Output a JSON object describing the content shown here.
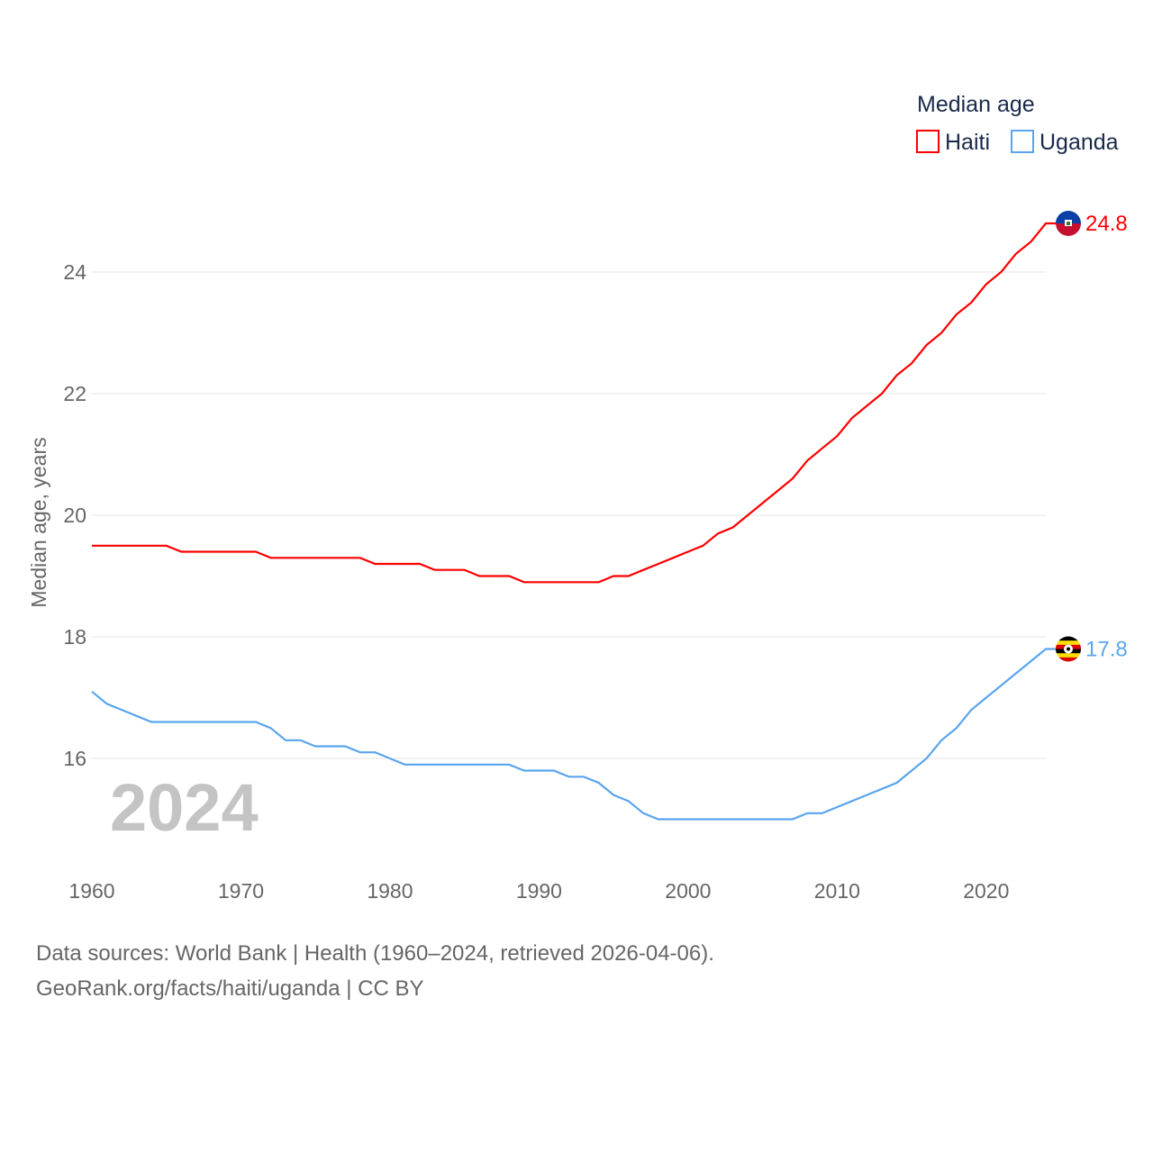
{
  "chart_data": {
    "type": "line",
    "title": "Median age",
    "ylabel": "Median age, years",
    "xlabel": "",
    "ylim": [
      15,
      24.8
    ],
    "xlim": [
      1960,
      2024
    ],
    "yticks": [
      16,
      18,
      20,
      22,
      24
    ],
    "xticks": [
      1960,
      1970,
      1980,
      1990,
      2000,
      2010,
      2020
    ],
    "grid": true,
    "legend_position": "top-right",
    "year_label": "2024",
    "x": [
      1960,
      1961,
      1962,
      1963,
      1964,
      1965,
      1966,
      1967,
      1968,
      1969,
      1970,
      1971,
      1972,
      1973,
      1974,
      1975,
      1976,
      1977,
      1978,
      1979,
      1980,
      1981,
      1982,
      1983,
      1984,
      1985,
      1986,
      1987,
      1988,
      1989,
      1990,
      1991,
      1992,
      1993,
      1994,
      1995,
      1996,
      1997,
      1998,
      1999,
      2000,
      2001,
      2002,
      2003,
      2004,
      2005,
      2006,
      2007,
      2008,
      2009,
      2010,
      2011,
      2012,
      2013,
      2014,
      2015,
      2016,
      2017,
      2018,
      2019,
      2020,
      2021,
      2022,
      2023,
      2024
    ],
    "series": [
      {
        "name": "Haiti",
        "color": "#ff0000",
        "end_label": "24.8",
        "values": [
          19.5,
          19.5,
          19.5,
          19.5,
          19.5,
          19.5,
          19.4,
          19.4,
          19.4,
          19.4,
          19.4,
          19.4,
          19.3,
          19.3,
          19.3,
          19.3,
          19.3,
          19.3,
          19.3,
          19.2,
          19.2,
          19.2,
          19.2,
          19.1,
          19.1,
          19.1,
          19.0,
          19.0,
          19.0,
          18.9,
          18.9,
          18.9,
          18.9,
          18.9,
          18.9,
          19.0,
          19.0,
          19.1,
          19.2,
          19.3,
          19.4,
          19.5,
          19.7,
          19.8,
          20.0,
          20.2,
          20.4,
          20.6,
          20.9,
          21.1,
          21.3,
          21.6,
          21.8,
          22.0,
          22.3,
          22.5,
          22.8,
          23.0,
          23.3,
          23.5,
          23.8,
          24.0,
          24.3,
          24.5,
          24.8
        ]
      },
      {
        "name": "Uganda",
        "color": "#5aa5ee",
        "end_label": "17.8",
        "values": [
          17.1,
          16.9,
          16.8,
          16.7,
          16.6,
          16.6,
          16.6,
          16.6,
          16.6,
          16.6,
          16.6,
          16.6,
          16.5,
          16.3,
          16.3,
          16.2,
          16.2,
          16.2,
          16.1,
          16.1,
          16.0,
          15.9,
          15.9,
          15.9,
          15.9,
          15.9,
          15.9,
          15.9,
          15.9,
          15.8,
          15.8,
          15.8,
          15.7,
          15.7,
          15.6,
          15.4,
          15.3,
          15.1,
          15.0,
          15.0,
          15.0,
          15.0,
          15.0,
          15.0,
          15.0,
          15.0,
          15.0,
          15.0,
          15.1,
          15.1,
          15.2,
          15.3,
          15.4,
          15.5,
          15.6,
          15.8,
          16.0,
          16.3,
          16.5,
          16.8,
          17.0,
          17.2,
          17.4,
          17.6,
          17.8
        ]
      }
    ]
  },
  "footer": {
    "line1": "Data sources: World Bank | Health (1960–2024, retrieved 2026-04-06).",
    "line2": "GeoRank.org/facts/haiti/uganda | CC BY"
  }
}
